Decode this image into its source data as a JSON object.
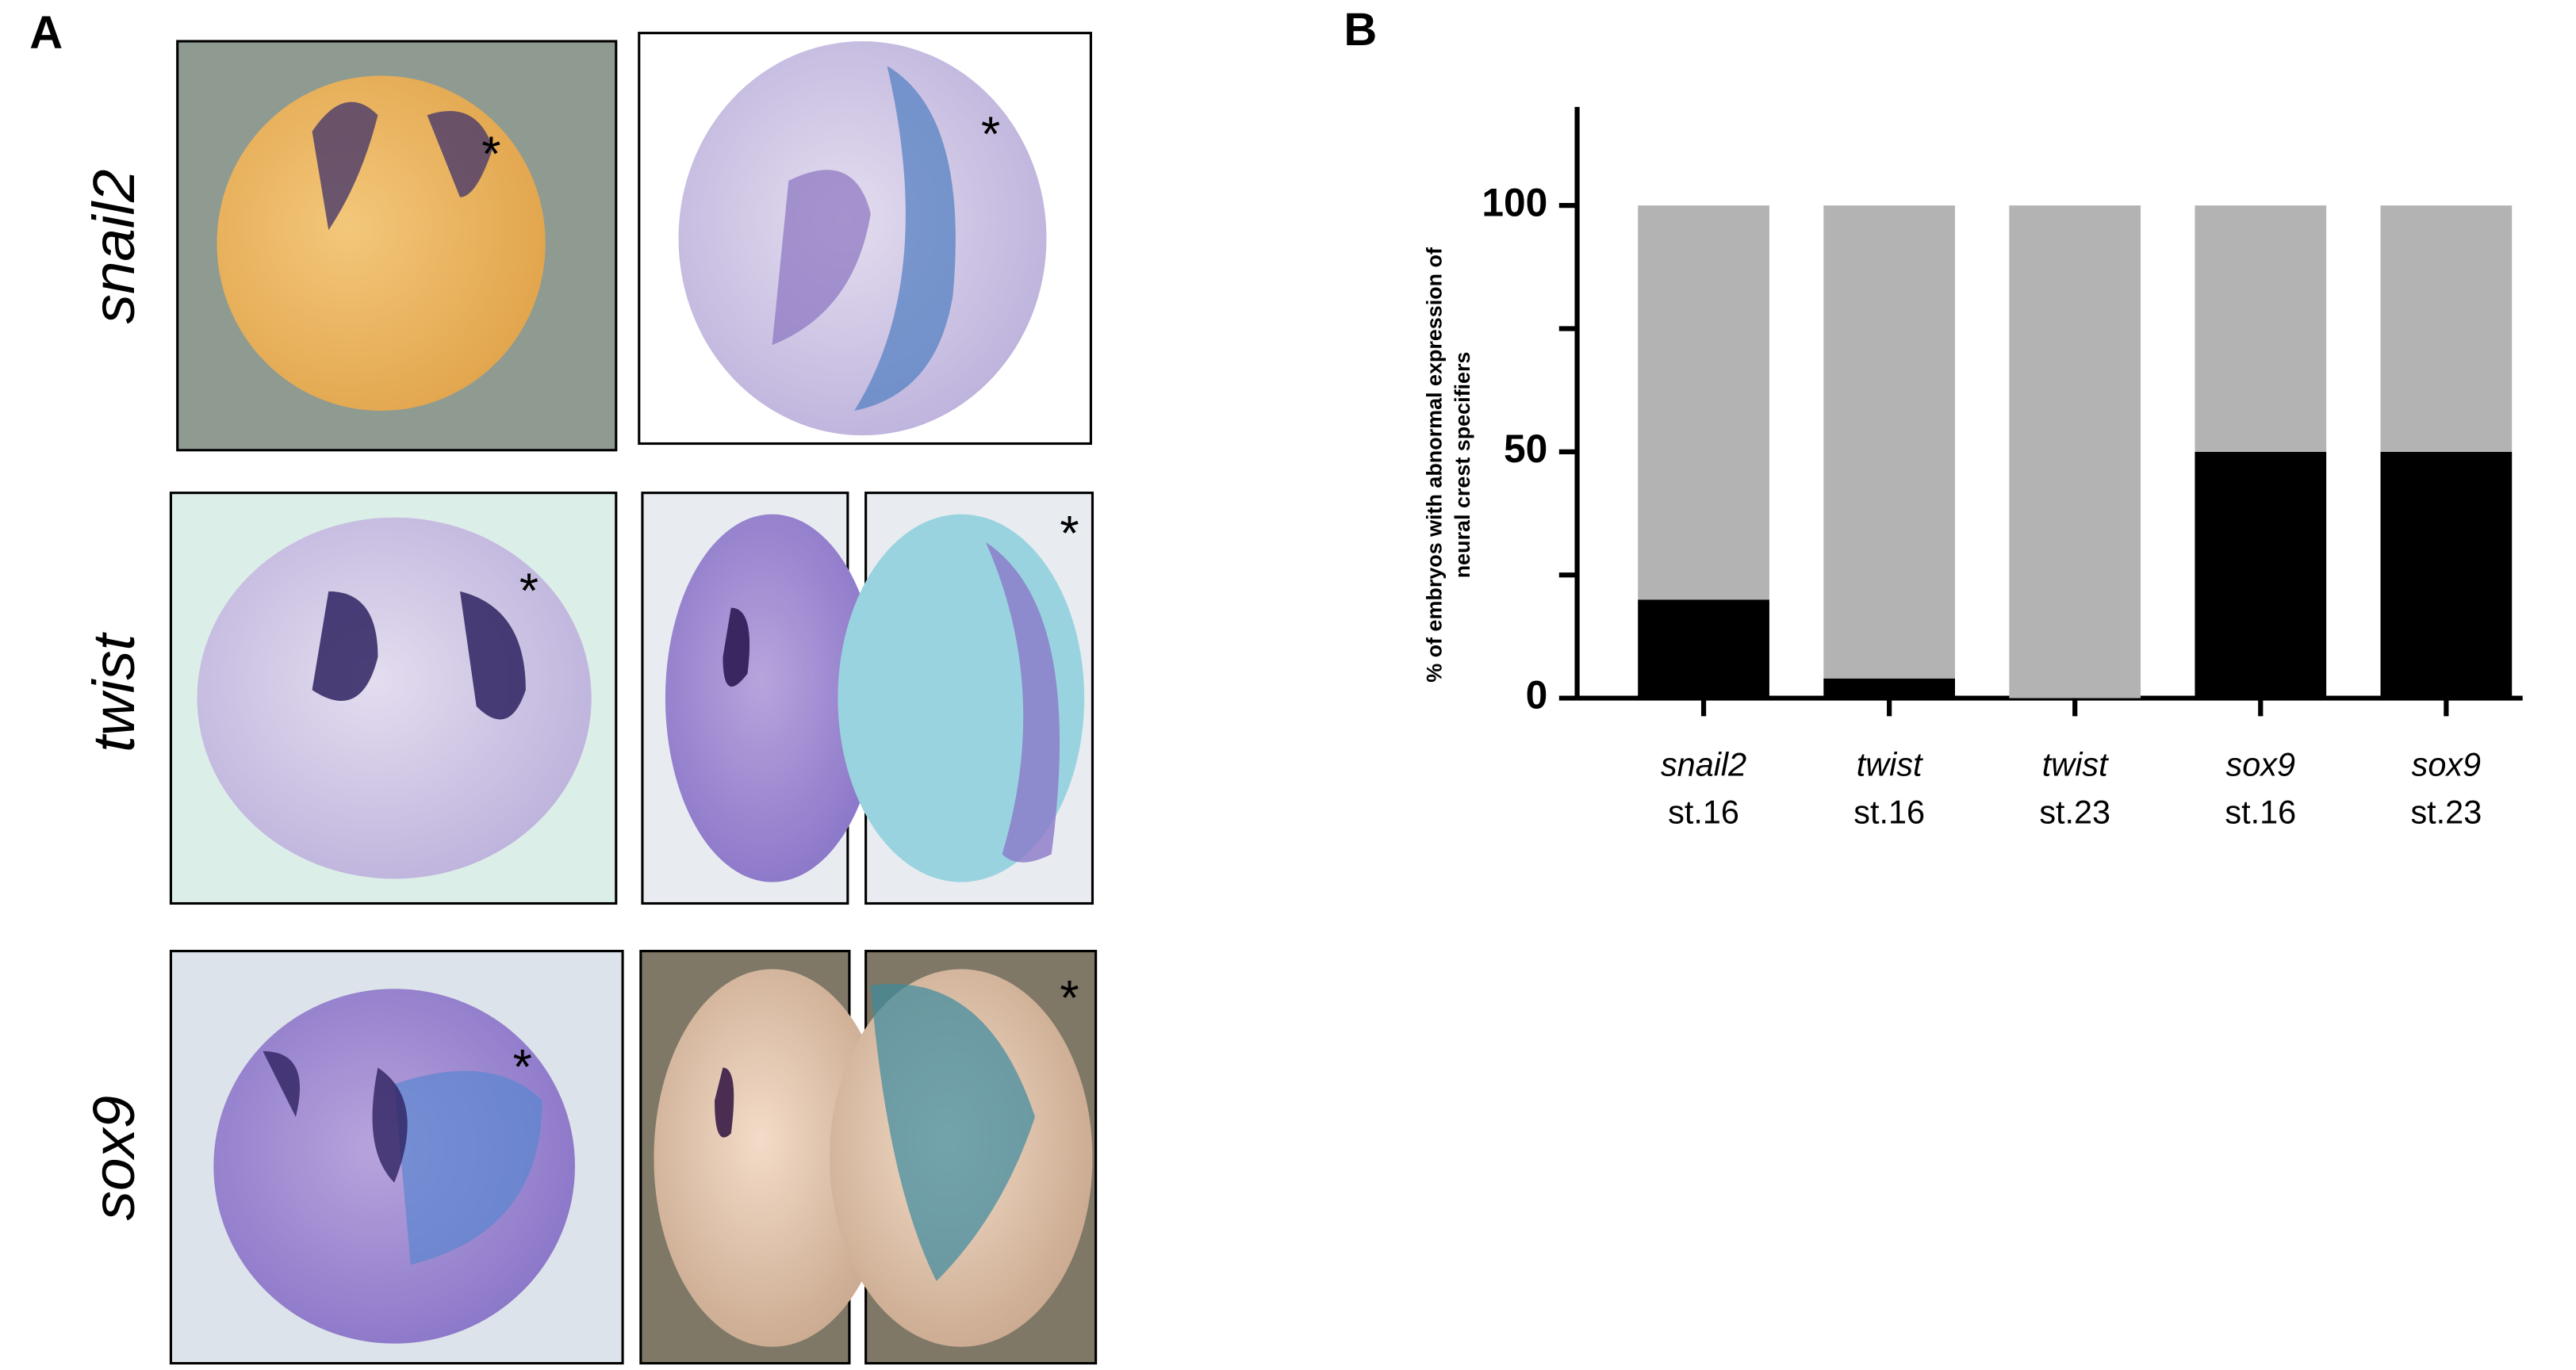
{
  "panel_a": {
    "label": "A",
    "rows": [
      "snail2",
      "twist",
      "sox9"
    ],
    "marker": "*"
  },
  "chart_data": {
    "type": "stacked-bar",
    "panel_label": "B",
    "ylabel": [
      "% of embryos with abnormal expression of",
      "neural crest specifiers"
    ],
    "categories": [
      "snail2",
      "twist",
      "twist",
      "sox9",
      "sox9"
    ],
    "stages": [
      "st.16",
      "st.16",
      "st.23",
      "st.16",
      "st.23"
    ],
    "series": [
      {
        "color": "#000000",
        "values": [
          20,
          4,
          0,
          50,
          50
        ]
      },
      {
        "color": "#b3b3b3",
        "values": [
          80,
          96,
          100,
          50,
          50
        ]
      }
    ],
    "ylim": [
      0,
      120
    ],
    "yticks": [
      0,
      50,
      100
    ],
    "yminorticks": [
      25,
      75
    ],
    "grid": false
  }
}
